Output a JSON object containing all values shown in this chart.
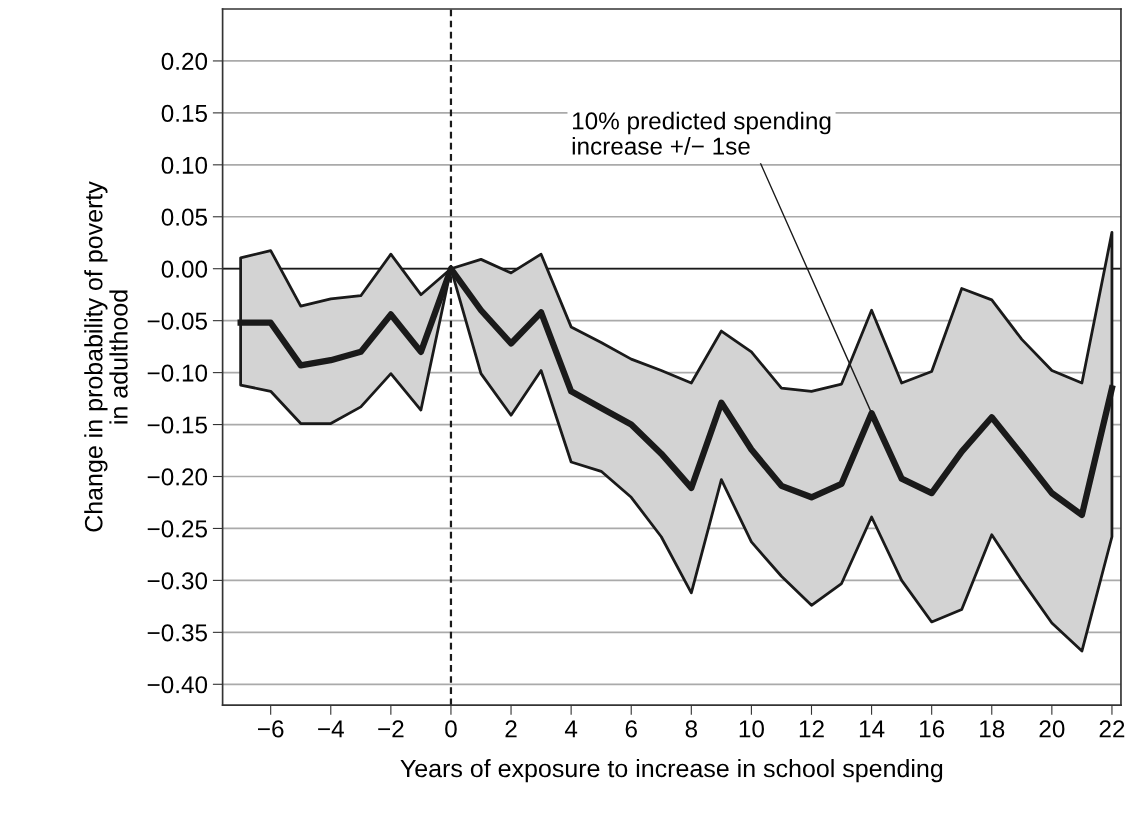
{
  "chart_data": {
    "type": "line",
    "xlabel": "Years of exposure to increase in school spending",
    "ylabel": "Change in probability of poverty\nin adulthood",
    "x": [
      -7,
      -6,
      -5,
      -4,
      -3,
      -2,
      -1,
      0,
      1,
      2,
      3,
      4,
      5,
      6,
      7,
      8,
      9,
      10,
      11,
      12,
      13,
      14,
      15,
      16,
      17,
      18,
      19,
      20,
      21,
      22
    ],
    "series": [
      {
        "color": "#1a1a1a",
        "values": [
          -0.052,
          -0.052,
          -0.093,
          -0.088,
          -0.08,
          -0.044,
          -0.08,
          0.0,
          -0.04,
          -0.072,
          -0.042,
          -0.118,
          -0.134,
          -0.15,
          -0.178,
          -0.211,
          -0.129,
          -0.174,
          -0.209,
          -0.22,
          -0.207,
          -0.139,
          -0.202,
          -0.216,
          -0.176,
          -0.143,
          -0.179,
          -0.216,
          -0.237,
          -0.115
        ],
        "lower": [
          -0.112,
          -0.118,
          -0.149,
          -0.149,
          -0.133,
          -0.101,
          -0.136,
          0.0,
          -0.101,
          -0.141,
          -0.098,
          -0.186,
          -0.195,
          -0.22,
          -0.258,
          -0.312,
          -0.203,
          -0.263,
          -0.296,
          -0.324,
          -0.303,
          -0.239,
          -0.3,
          -0.34,
          -0.328,
          -0.256,
          -0.3,
          -0.341,
          -0.368,
          -0.258
        ],
        "upper": [
          0.0105,
          0.0175,
          -0.036,
          -0.029,
          -0.026,
          0.014,
          -0.025,
          0.0,
          0.009,
          -0.004,
          0.014,
          -0.056,
          -0.071,
          -0.087,
          -0.098,
          -0.11,
          -0.06,
          -0.08,
          -0.115,
          -0.118,
          -0.111,
          -0.04,
          -0.11,
          -0.099,
          -0.019,
          -0.03,
          -0.068,
          -0.098,
          -0.11,
          0.035
        ]
      }
    ],
    "xlim": [
      -7.6,
      22.3
    ],
    "xticks": [
      {
        "value": -6,
        "label": "−6"
      },
      {
        "value": -4,
        "label": "−4"
      },
      {
        "value": -2,
        "label": "−2"
      },
      0,
      2,
      4,
      6,
      8,
      10,
      12,
      14,
      16,
      18,
      20,
      22
    ],
    "ylim": [
      -0.42,
      0.25
    ],
    "yticks": [
      {
        "value": -0.4,
        "label": "−0.40"
      },
      {
        "value": -0.35,
        "label": "−0.35"
      },
      {
        "value": -0.3,
        "label": "−0.30"
      },
      {
        "value": -0.25,
        "label": "−0.25"
      },
      {
        "value": -0.2,
        "label": "−0.20"
      },
      {
        "value": -0.15,
        "label": "−0.15"
      },
      {
        "value": -0.1,
        "label": "−0.10"
      },
      {
        "value": -0.05,
        "label": "−0.05"
      },
      {
        "value": 0,
        "label": "0.00"
      },
      {
        "value": 0.05,
        "label": "0.05"
      },
      {
        "value": 0.1,
        "label": "0.10"
      },
      {
        "value": 0.15,
        "label": "0.15"
      },
      {
        "value": 0.2,
        "label": "0.20"
      }
    ],
    "grid": "y",
    "legend": false,
    "marker": "none",
    "line_style": "solid",
    "ref_lines": [
      {
        "axis": "y",
        "value": 0,
        "color": "#1a1a1a",
        "line_style": "solid"
      },
      {
        "axis": "x",
        "value": 0,
        "color": "#1a1a1a",
        "line_style": "dashed"
      }
    ],
    "annotations": [
      {
        "text": "10% predicted spending\nincrease +/− 1se",
        "x": 14,
        "y": -0.139
      }
    ]
  }
}
